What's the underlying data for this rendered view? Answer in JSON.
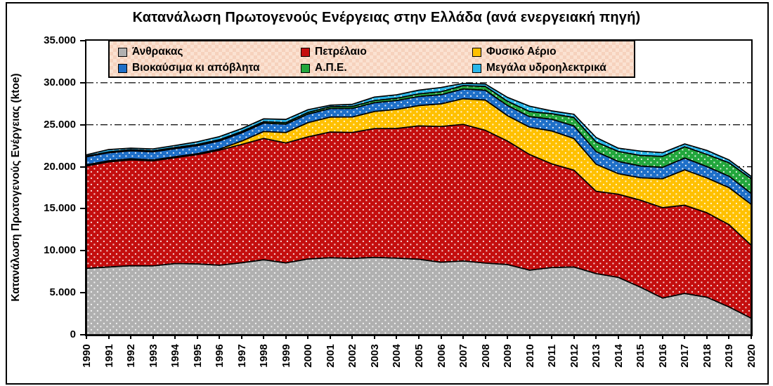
{
  "figure": {
    "title": "Κατανάλωση Πρωτογενούς Ενέργειας στην Ελλάδα (ανά ενεργειακή πηγή)",
    "y_axis_title": "Κατανάλωση Πρωτογενούς Ενέργειας (ktoe)"
  },
  "chart_data": {
    "type": "area",
    "stacked": true,
    "title": "Κατανάλωση Πρωτογενούς Ενέργειας στην Ελλάδα (ανά ενεργειακή πηγή)",
    "xlabel": "",
    "ylabel": "Κατανάλωση Πρωτογενούς Ενέργειας (ktoe)",
    "ylim": [
      0,
      35000
    ],
    "ytick_values": [
      0,
      5000,
      10000,
      15000,
      20000,
      25000,
      30000,
      35000
    ],
    "ytick_labels": [
      "0",
      "5.000",
      "10.000",
      "15.000",
      "20.000",
      "25.000",
      "30.000",
      "35.000"
    ],
    "gridline_values": [
      5000,
      10000,
      15000,
      20000,
      25000,
      30000
    ],
    "gridline_style": "dash-dot",
    "legend_position": "top-inside",
    "x": [
      "1990",
      "1991",
      "1992",
      "1993",
      "1994",
      "1995",
      "1996",
      "1997",
      "1998",
      "1999",
      "2000",
      "2001",
      "2002",
      "2003",
      "2004",
      "2005",
      "2006",
      "2007",
      "2008",
      "2009",
      "2010",
      "2011",
      "2012",
      "2013",
      "2014",
      "2015",
      "2016",
      "2017",
      "2018",
      "2019",
      "2020"
    ],
    "series": [
      {
        "name": "Άνθρακας",
        "color": "#b0b0b0",
        "values": [
          7900,
          8070,
          8220,
          8200,
          8480,
          8440,
          8280,
          8570,
          8930,
          8550,
          9020,
          9170,
          9090,
          9210,
          9120,
          8990,
          8640,
          8790,
          8540,
          8360,
          7690,
          8000,
          8070,
          7280,
          6830,
          5670,
          4370,
          4920,
          4470,
          3310,
          1970
        ]
      },
      {
        "name": "Πετρέλαιο",
        "color": "#c40e0e",
        "values": [
          12200,
          12500,
          12600,
          12500,
          12600,
          13000,
          13700,
          14080,
          14440,
          14280,
          14540,
          14960,
          14990,
          15330,
          15440,
          15870,
          16150,
          16250,
          15800,
          14700,
          13760,
          12350,
          11530,
          9800,
          9900,
          10350,
          10760,
          10500,
          10060,
          9800,
          8690
        ]
      },
      {
        "name": "Φυσικό Αέριο",
        "color": "#ffc000",
        "values": [
          130,
          140,
          130,
          120,
          110,
          110,
          120,
          400,
          830,
          1240,
          1690,
          1780,
          1840,
          2040,
          2270,
          2420,
          2690,
          3060,
          3600,
          3030,
          3260,
          3910,
          3760,
          3220,
          2450,
          2670,
          3450,
          4210,
          4140,
          4410,
          4860
        ]
      },
      {
        "name": "Βιοκαύσιμα κι απόβλητα",
        "color": "#1e6fc8",
        "values": [
          950,
          960,
          955,
          960,
          965,
          960,
          970,
          980,
          1000,
          1000,
          1020,
          1010,
          1030,
          1040,
          1050,
          1090,
          1100,
          1150,
          1170,
          1200,
          1250,
          1400,
          1500,
          1500,
          1450,
          1400,
          1350,
          1400,
          1350,
          1350,
          1300
        ]
      },
      {
        "name": "Α.Π.Ε.",
        "color": "#22a63c",
        "values": [
          90,
          100,
          110,
          120,
          130,
          140,
          150,
          160,
          170,
          180,
          200,
          220,
          240,
          260,
          280,
          310,
          350,
          400,
          450,
          510,
          610,
          650,
          1000,
          1150,
          1200,
          1250,
          1300,
          1350,
          1450,
          1600,
          1750
        ]
      },
      {
        "name": "Μεγάλα υδροηλεκτρικά",
        "color": "#29b6e9",
        "values": [
          150,
          270,
          200,
          220,
          240,
          310,
          360,
          340,
          330,
          390,
          320,
          180,
          240,
          410,
          400,
          430,
          500,
          270,
          290,
          460,
          640,
          340,
          390,
          530,
          380,
          520,
          450,
          330,
          470,
          340,
          280
        ]
      }
    ]
  }
}
